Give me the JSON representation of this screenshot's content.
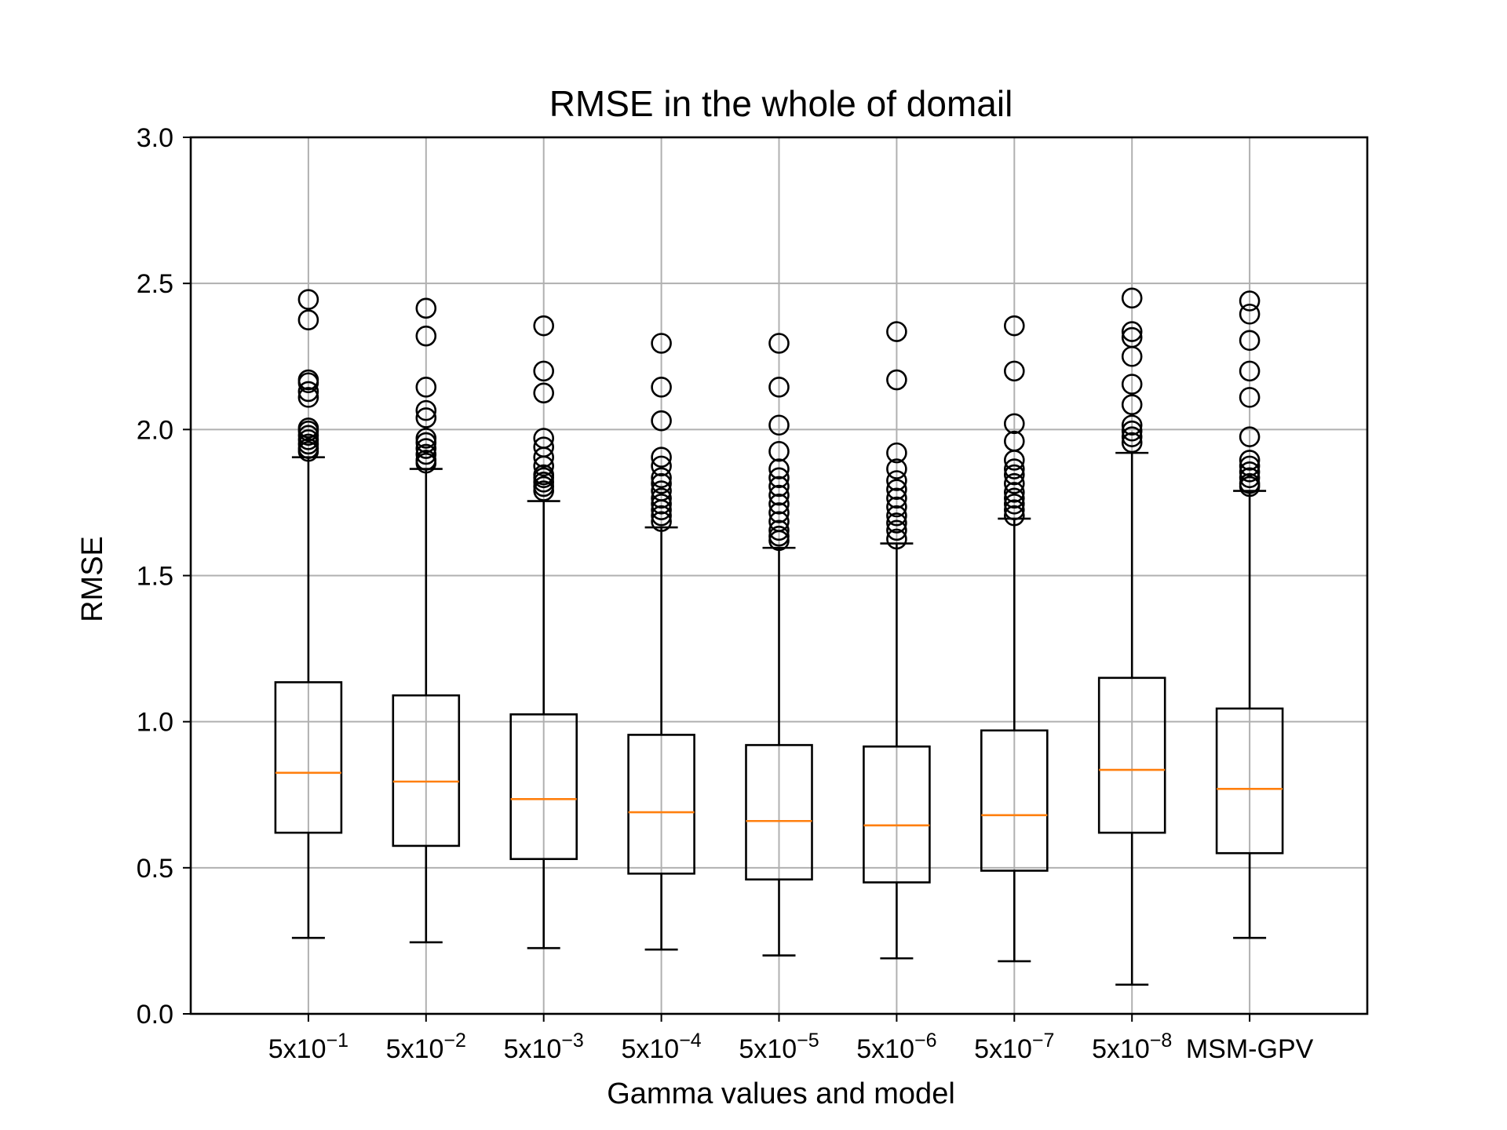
{
  "chart_data": {
    "type": "box",
    "title": "RMSE in the whole of domail",
    "xlabel": "Gamma values and model",
    "ylabel": "RMSE",
    "ylim": [
      0.0,
      3.0
    ],
    "yticks": [
      "0.0",
      "0.5",
      "1.0",
      "1.5",
      "2.0",
      "2.5",
      "3.0"
    ],
    "yticks_values": [
      0.0,
      0.5,
      1.0,
      1.5,
      2.0,
      2.5,
      3.0
    ],
    "grid": true,
    "colors": {
      "box": "#000000",
      "median": "#ff7f0e",
      "grid": "#b0b0b0"
    },
    "categories": [
      {
        "base": "5x10",
        "exp": "−1"
      },
      {
        "base": "5x10",
        "exp": "−2"
      },
      {
        "base": "5x10",
        "exp": "−3"
      },
      {
        "base": "5x10",
        "exp": "−4"
      },
      {
        "base": "5x10",
        "exp": "−5"
      },
      {
        "base": "5x10",
        "exp": "−6"
      },
      {
        "base": "5x10",
        "exp": "−7"
      },
      {
        "base": "5x10",
        "exp": "−8"
      },
      {
        "base": "MSM-GPV",
        "exp": ""
      }
    ],
    "boxes": [
      {
        "whislo": 0.26,
        "q1": 0.62,
        "med": 0.825,
        "q3": 1.135,
        "whishi": 1.905,
        "fliers": [
          2.445,
          2.375,
          2.17,
          2.16,
          2.13,
          2.11,
          2.005,
          1.995,
          1.98,
          1.965,
          1.95,
          1.935,
          1.925
        ]
      },
      {
        "whislo": 0.245,
        "q1": 0.575,
        "med": 0.795,
        "q3": 1.09,
        "whishi": 1.865,
        "fliers": [
          2.415,
          2.32,
          2.145,
          2.065,
          2.04,
          1.97,
          1.955,
          1.935,
          1.915,
          1.895,
          1.885
        ]
      },
      {
        "whislo": 0.225,
        "q1": 0.53,
        "med": 0.735,
        "q3": 1.025,
        "whishi": 1.755,
        "fliers": [
          2.355,
          2.2,
          2.125,
          1.97,
          1.94,
          1.905,
          1.875,
          1.845,
          1.835,
          1.82,
          1.805,
          1.79
        ]
      },
      {
        "whislo": 0.22,
        "q1": 0.48,
        "med": 0.69,
        "q3": 0.955,
        "whishi": 1.665,
        "fliers": [
          2.295,
          2.145,
          2.03,
          1.905,
          1.875,
          1.835,
          1.815,
          1.79,
          1.765,
          1.745,
          1.725,
          1.705,
          1.685
        ]
      },
      {
        "whislo": 0.2,
        "q1": 0.46,
        "med": 0.66,
        "q3": 0.92,
        "whishi": 1.595,
        "fliers": [
          2.295,
          2.145,
          2.015,
          1.925,
          1.865,
          1.835,
          1.805,
          1.775,
          1.745,
          1.715,
          1.685,
          1.655,
          1.635,
          1.62
        ]
      },
      {
        "whislo": 0.19,
        "q1": 0.45,
        "med": 0.645,
        "q3": 0.915,
        "whishi": 1.61,
        "fliers": [
          2.335,
          2.17,
          1.92,
          1.865,
          1.825,
          1.795,
          1.765,
          1.735,
          1.705,
          1.68,
          1.655,
          1.625
        ]
      },
      {
        "whislo": 0.18,
        "q1": 0.49,
        "med": 0.68,
        "q3": 0.97,
        "whishi": 1.695,
        "fliers": [
          2.355,
          2.2,
          2.02,
          1.96,
          1.895,
          1.865,
          1.845,
          1.815,
          1.785,
          1.765,
          1.745,
          1.725,
          1.705
        ]
      },
      {
        "whislo": 0.1,
        "q1": 0.62,
        "med": 0.835,
        "q3": 1.15,
        "whishi": 1.92,
        "fliers": [
          2.45,
          2.335,
          2.315,
          2.25,
          2.155,
          2.085,
          2.015,
          1.995,
          1.975,
          1.955
        ]
      },
      {
        "whislo": 0.26,
        "q1": 0.55,
        "med": 0.77,
        "q3": 1.045,
        "whishi": 1.79,
        "fliers": [
          2.44,
          2.395,
          2.305,
          2.2,
          2.11,
          1.975,
          1.895,
          1.875,
          1.855,
          1.835,
          1.815,
          1.805
        ]
      }
    ]
  }
}
